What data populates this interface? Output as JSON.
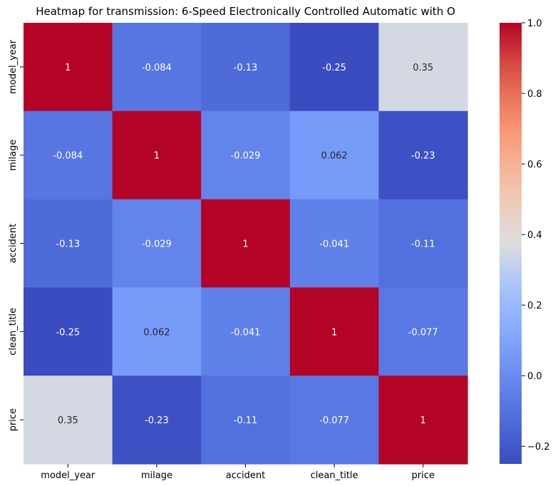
{
  "chart_data": {
    "type": "heatmap",
    "title": "Heatmap for transmission: 6-Speed Electronically Controlled Automatic with O",
    "colormap": "coolwarm",
    "row_labels": [
      "model_year",
      "milage",
      "accident",
      "clean_title",
      "price"
    ],
    "col_labels": [
      "model_year",
      "milage",
      "accident",
      "clean_title",
      "price"
    ],
    "values": [
      [
        1,
        -0.084,
        -0.13,
        -0.25,
        0.35
      ],
      [
        -0.084,
        1,
        -0.029,
        0.062,
        -0.23
      ],
      [
        -0.13,
        -0.029,
        1,
        -0.041,
        -0.11
      ],
      [
        -0.25,
        0.062,
        -0.041,
        1,
        -0.077
      ],
      [
        0.35,
        -0.23,
        -0.11,
        -0.077,
        1
      ]
    ],
    "annotations": [
      [
        "1",
        "-0.084",
        "-0.13",
        "-0.25",
        "0.35"
      ],
      [
        "-0.084",
        "1",
        "-0.029",
        "0.062",
        "-0.23"
      ],
      [
        "-0.13",
        "-0.029",
        "1",
        "-0.041",
        "-0.11"
      ],
      [
        "-0.25",
        "0.062",
        "-0.041",
        "1",
        "-0.077"
      ],
      [
        "0.35",
        "-0.23",
        "-0.11",
        "-0.077",
        "1"
      ]
    ],
    "colorbar": {
      "vmin": -0.25,
      "vmax": 1.0,
      "ticks": [
        1.0,
        0.8,
        0.6,
        0.4,
        0.2,
        0.0,
        -0.2
      ],
      "tick_labels": [
        "1.0",
        "0.8",
        "0.6",
        "0.4",
        "0.2",
        "0.0",
        "−0.2"
      ]
    }
  }
}
